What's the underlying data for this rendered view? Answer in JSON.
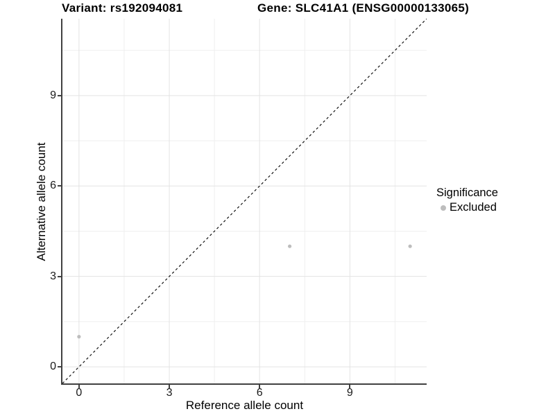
{
  "chart_data": {
    "type": "scatter",
    "titles": {
      "left": "Variant: rs192094081",
      "right": "Gene: SLC41A1 (ENSG00000133065)"
    },
    "xlabel": "Reference allele count",
    "ylabel": "Alternative allele count",
    "xlim": [
      -0.55,
      11.55
    ],
    "ylim": [
      -0.55,
      11.55
    ],
    "x_ticks": [
      0,
      3,
      6,
      9
    ],
    "y_ticks": [
      0,
      3,
      6,
      9
    ],
    "x_minor_ticks": [
      1.5,
      4.5,
      7.5,
      10.5
    ],
    "y_minor_ticks": [
      1.5,
      4.5,
      7.5,
      10.5
    ],
    "grid": "major and minor, light gray on white",
    "reference_line": {
      "type": "identity",
      "equation": "y = x",
      "style": "dashed",
      "color": "#111111"
    },
    "series": [
      {
        "name": "Excluded",
        "color": "#bdbdbd",
        "points": [
          {
            "x": 0,
            "y": 1
          },
          {
            "x": 7,
            "y": 4
          },
          {
            "x": 11,
            "y": 4
          }
        ]
      }
    ],
    "legend": {
      "title": "Significance",
      "position": "right",
      "items": [
        {
          "label": "Excluded",
          "color": "#bdbdbd"
        }
      ]
    }
  },
  "colors": {
    "background": "#ffffff",
    "grid_major": "#e3e3e3",
    "grid_minor": "#efefef",
    "axis_line": "#404040",
    "tick_text": "#1a1a1a",
    "title_text": "#000000",
    "point": "#bdbdbd"
  }
}
